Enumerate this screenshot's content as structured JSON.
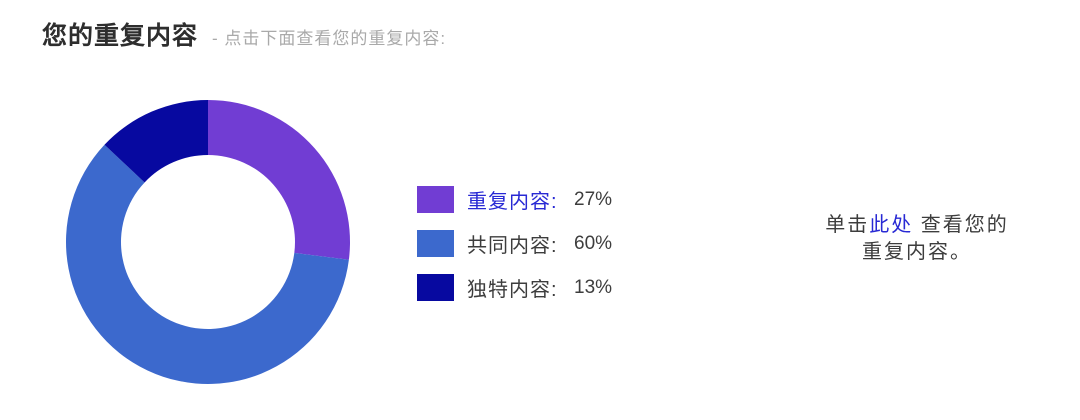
{
  "header": {
    "title": "您的重复内容",
    "subtitle": "- 点击下面查看您的重复内容:"
  },
  "chart_data": {
    "type": "pie",
    "subtype": "donut",
    "categories": [
      "重复内容",
      "共同内容",
      "独特内容"
    ],
    "values": [
      27,
      60,
      13
    ],
    "unit": "%",
    "colors": [
      "#713DD3",
      "#3C69CD",
      "#0709A0"
    ],
    "start_angle_deg": 0,
    "direction": "clockwise",
    "inner_radius_ratio": 0.61,
    "legend_position": "right"
  },
  "legend": {
    "items": [
      {
        "label": "重复内容:",
        "value": "27%",
        "color": "#713DD3",
        "label_color": "#2829D4"
      },
      {
        "label": "共同内容:",
        "value": "60%",
        "color": "#3C69CD",
        "label_color": "#3d3d3d"
      },
      {
        "label": "独特内容:",
        "value": "13%",
        "color": "#0709A0",
        "label_color": "#3d3d3d"
      }
    ]
  },
  "note": {
    "prefix": "单击",
    "link_text": "此处",
    "middle": " 查看您的",
    "line2": "重复内容。",
    "link_color": "#2829D4"
  }
}
